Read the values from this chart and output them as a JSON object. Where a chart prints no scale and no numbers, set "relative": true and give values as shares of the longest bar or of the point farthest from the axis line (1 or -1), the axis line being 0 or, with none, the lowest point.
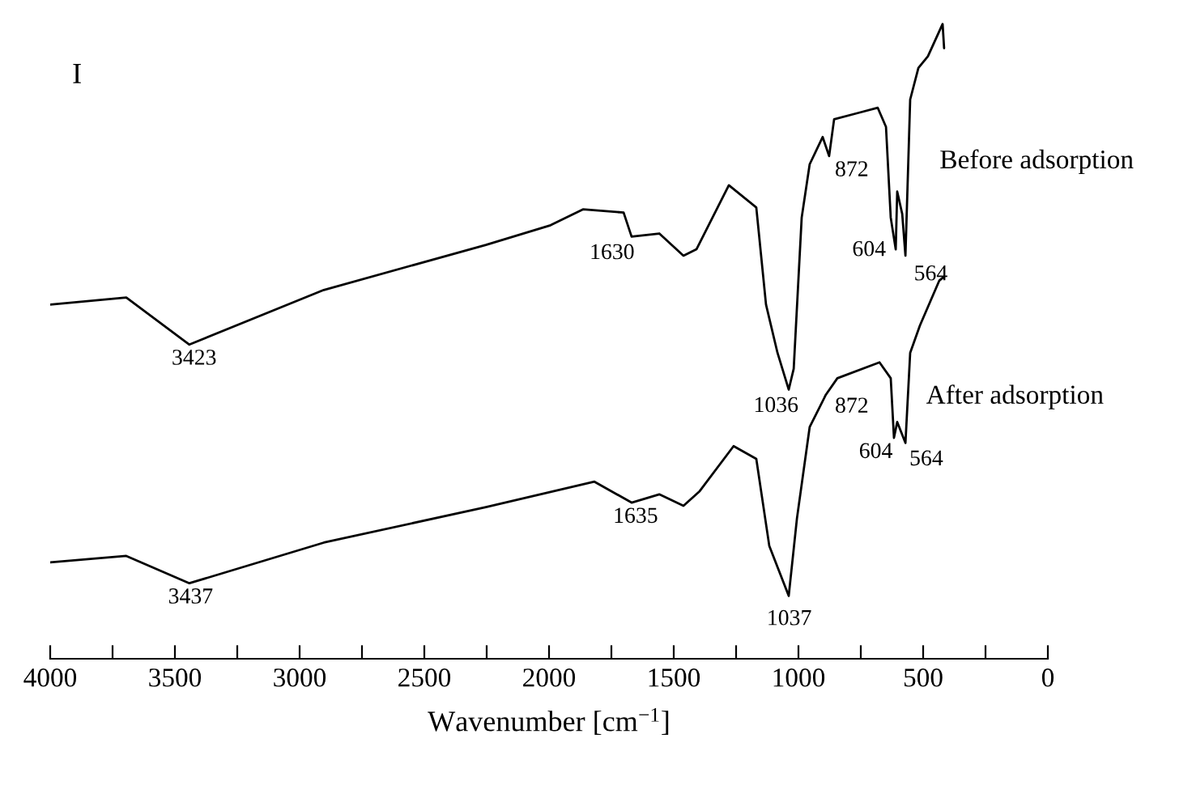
{
  "chart_data": {
    "type": "line",
    "relative": true,
    "xlabel": "Wavenumber [cm$^{−1}$]",
    "xlim": [
      4000,
      0
    ],
    "xticks": [
      4000,
      {
        "value": 3750,
        "label": null
      },
      3500,
      {
        "value": 3250,
        "label": null
      },
      3000,
      {
        "value": 2750,
        "label": null
      },
      2500,
      {
        "value": 2250,
        "label": null
      },
      2000,
      {
        "value": 1750,
        "label": null
      },
      1500,
      {
        "value": 1250,
        "label": null
      },
      1000,
      {
        "value": 750,
        "label": null
      },
      500,
      {
        "value": 250,
        "label": null
      },
      0
    ],
    "tick_labels": "x",
    "grid": false,
    "legend": false,
    "marker": "none",
    "line_style": "solid",
    "series": [
      {
        "name": "Before adsorption",
        "color": "#000000",
        "x": [
          4000,
          3695,
          3442,
          2903,
          2253,
          1994,
          1864,
          1701,
          1669,
          1558,
          1461,
          1409,
          1279,
          1169,
          1130,
          1084,
          1039,
          1019,
          987,
          955,
          903,
          877,
          857,
          760,
          682,
          649,
          630,
          610,
          604,
          584,
          571,
          552,
          519,
          481,
          422,
          416
        ],
        "values": [
          0.558,
          0.569,
          0.495,
          0.581,
          0.652,
          0.683,
          0.708,
          0.703,
          0.665,
          0.67,
          0.635,
          0.645,
          0.746,
          0.711,
          0.558,
          0.482,
          0.424,
          0.457,
          0.695,
          0.779,
          0.822,
          0.792,
          0.85,
          0.86,
          0.868,
          0.838,
          0.695,
          0.645,
          0.736,
          0.701,
          0.635,
          0.881,
          0.931,
          0.949,
          1.0,
          0.962
        ]
      },
      {
        "name": "After adsorption",
        "color": "#000000",
        "x": [
          4000,
          3695,
          3442,
          2903,
          2253,
          1818,
          1669,
          1558,
          1461,
          1396,
          1260,
          1169,
          1117,
          1039,
          1006,
          955,
          890,
          844,
          675,
          630,
          617,
          604,
          571,
          552,
          513,
          435,
          416
        ],
        "values": [
          0.152,
          0.162,
          0.119,
          0.183,
          0.239,
          0.279,
          0.246,
          0.259,
          0.241,
          0.264,
          0.335,
          0.315,
          0.178,
          0.099,
          0.221,
          0.365,
          0.416,
          0.442,
          0.467,
          0.442,
          0.348,
          0.373,
          0.34,
          0.482,
          0.525,
          0.596,
          0.602
        ]
      }
    ],
    "annotations": [
      "I",
      {
        "text": "3423",
        "x": 3423,
        "y": 0.495
      },
      {
        "text": "1630",
        "x": 1630,
        "y": 0.665
      },
      {
        "text": "1036",
        "x": 1036,
        "y": 0.424
      },
      {
        "text": "872",
        "x": 872,
        "y": 0.792
      },
      {
        "text": "604",
        "x": 604,
        "y": 0.645
      },
      {
        "text": "564",
        "x": 564,
        "y": 0.635
      },
      {
        "text": "3437",
        "x": 3437,
        "y": 0.119
      },
      {
        "text": "1635",
        "x": 1635,
        "y": 0.246
      },
      {
        "text": "1037",
        "x": 1037,
        "y": 0.099
      },
      {
        "text": "872",
        "x": 872,
        "y": 0.416
      },
      {
        "text": "604",
        "x": 604,
        "y": 0.348
      },
      {
        "text": "564",
        "x": 564,
        "y": 0.34
      }
    ]
  }
}
